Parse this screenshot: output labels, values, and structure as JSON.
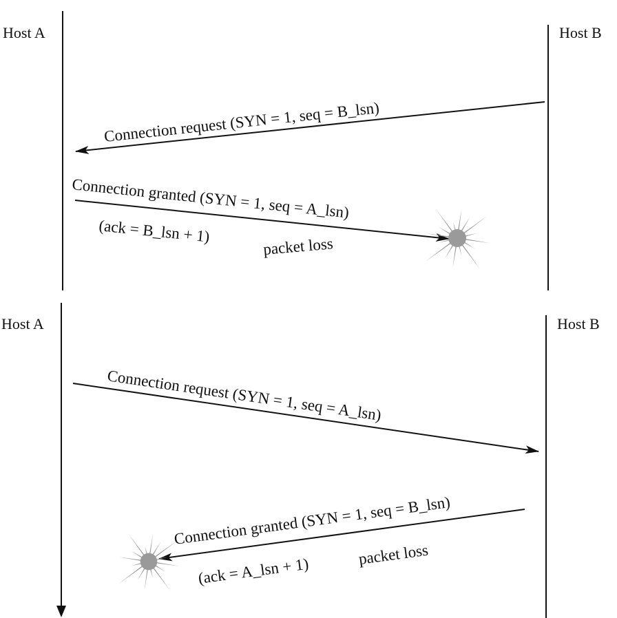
{
  "top": {
    "host_a": "Host A",
    "host_b": "Host B",
    "msg1": "Connection request (SYN = 1, seq = B_lsn)",
    "msg2": "Connection granted (SYN = 1, seq = A_lsn)",
    "msg2_ack": "(ack = B_lsn + 1)",
    "loss": "packet loss"
  },
  "bottom": {
    "host_a": "Host A",
    "host_b": "Host B",
    "msg1": "Connection request (SYN = 1, seq = A_lsn)",
    "msg2": "Connection granted (SYN = 1, seq = B_lsn)",
    "msg2_ack": "(ack = A_lsn + 1)",
    "loss": "packet loss"
  },
  "colors": {
    "ink": "#111111",
    "burst": "#9a9a9a"
  },
  "icons": {
    "packet_loss": "starburst-icon"
  }
}
